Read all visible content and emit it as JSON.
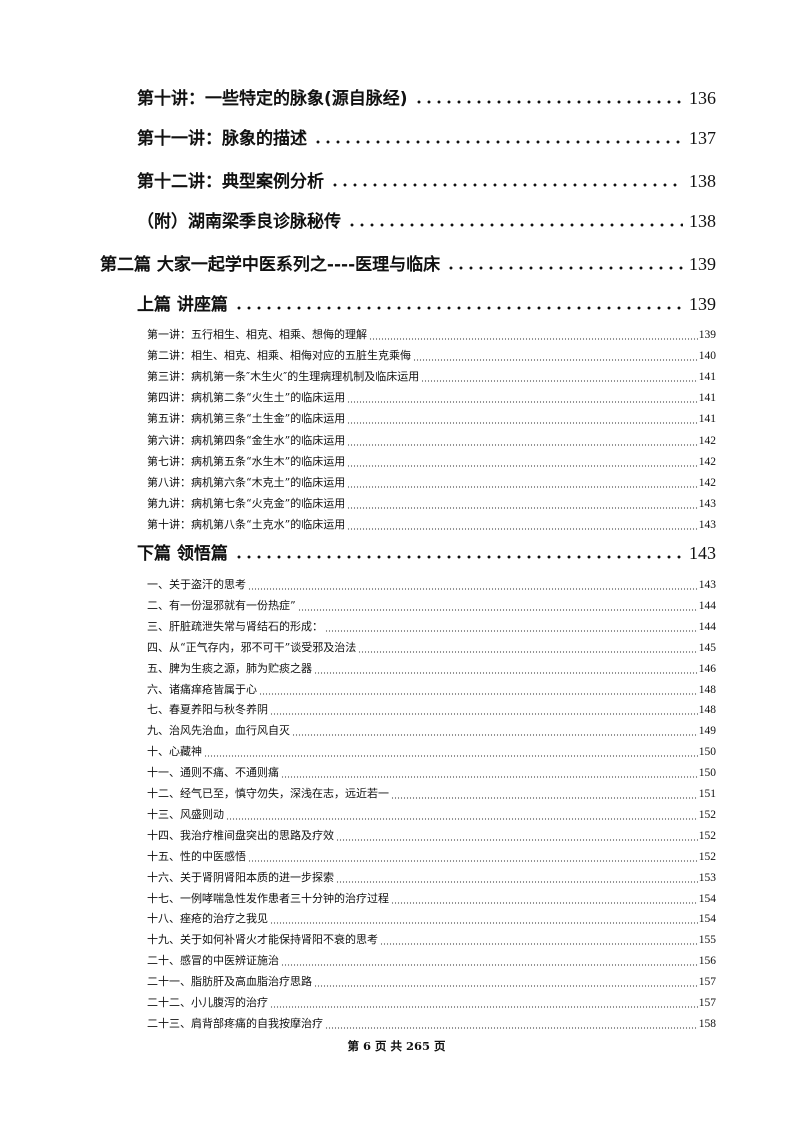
{
  "major_entries": [
    {
      "title": "第十讲：一些特定的脉象(源自脉经)",
      "page": "136"
    },
    {
      "title": "第十一讲：脉象的描述",
      "page": "137"
    },
    {
      "title": "第十二讲：典型案例分析",
      "page": "138"
    },
    {
      "title": "（附）湖南梁季良诊脉秘传",
      "page": "138"
    },
    {
      "title": "第二篇  大家一起学中医系列之----医理与临床",
      "page": "139"
    },
    {
      "title": "上篇   讲座篇",
      "page": "139"
    }
  ],
  "lecture_entries": [
    {
      "title": "第一讲：五行相生、相克、相乘、想侮的理解",
      "page": "139"
    },
    {
      "title": "第二讲：相生、相克、相乘、相侮对应的五脏生克乘侮",
      "page": "140"
    },
    {
      "title": "第三讲：病机第一条″木生火″的生理病理机制及临床运用",
      "page": "141"
    },
    {
      "title": "第四讲：病机第二条“火生土”的临床运用",
      "page": "141"
    },
    {
      "title": "第五讲：病机第三条“土生金”的临床运用",
      "page": "141"
    },
    {
      "title": "第六讲：病机第四条“金生水”的临床运用",
      "page": "142"
    },
    {
      "title": "第七讲：病机第五条“水生木”的临床运用",
      "page": "142"
    },
    {
      "title": "第八讲：病机第六条“木克土”的临床运用",
      "page": "142"
    },
    {
      "title": "第九讲：病机第七条“火克金”的临床运用",
      "page": "143"
    },
    {
      "title": "第十讲：病机第八条“土克水”的临床运用",
      "page": "143"
    }
  ],
  "part_two": {
    "title": "下篇   领悟篇",
    "page": "143"
  },
  "insight_entries": [
    {
      "title": "一、关于盗汗的思考",
      "page": "143"
    },
    {
      "title": "二、有一份湿邪就有一份热症”",
      "page": "144"
    },
    {
      "title": "三、肝脏疏泄失常与肾结石的形成：",
      "page": "144"
    },
    {
      "title": "四、从“正气存内，邪不可干”谈受邪及治法",
      "page": "145"
    },
    {
      "title": "五、脾为生痰之源，肺为贮痰之器",
      "page": "146"
    },
    {
      "title": "六、诸痛痒疮皆属于心",
      "page": "148"
    },
    {
      "title": "七、春夏养阳与秋冬养阴",
      "page": "148"
    },
    {
      "title": "九、治风先治血，血行风自灭",
      "page": "149"
    },
    {
      "title": "十、心藏神",
      "page": "150"
    },
    {
      "title": "十一、通则不痛、不通则痛",
      "page": "150"
    },
    {
      "title": "十二、经气已至，慎守勿失，深浅在志，远近若一",
      "page": "151"
    },
    {
      "title": "十三、风盛则动",
      "page": "152"
    },
    {
      "title": "十四、我治疗椎间盘突出的思路及疗效",
      "page": "152"
    },
    {
      "title": "十五、性的中医感悟",
      "page": "152"
    },
    {
      "title": "十六、关于肾阴肾阳本质的进一步探索",
      "page": "153"
    },
    {
      "title": "十七、一例哮喘急性发作患者三十分钟的治疗过程",
      "page": "154"
    },
    {
      "title": "十八、痤疮的治疗之我见",
      "page": "154"
    },
    {
      "title": "十九、关于如何补肾火才能保持肾阳不衰的思考",
      "page": "155"
    },
    {
      "title": "二十、感冒的中医辨证施治",
      "page": "156"
    },
    {
      "title": "二十一、脂肪肝及高血脂治疗思路",
      "page": "157"
    },
    {
      "title": "二十二、小儿腹泻的治疗",
      "page": "157"
    },
    {
      "title": "二十三、肩背部疼痛的自我按摩治疗",
      "page": "158"
    }
  ],
  "footer": "第 6 页 共 265 页"
}
